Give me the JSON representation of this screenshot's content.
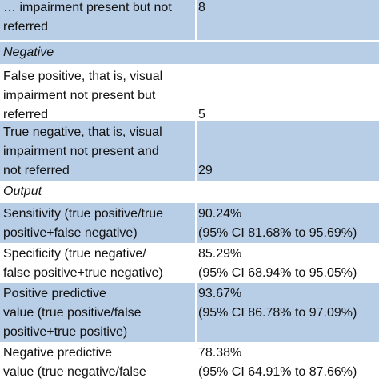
{
  "rows": [
    {
      "label": [
        "… impairment present but not",
        "referred"
      ],
      "value": [
        "",
        "8"
      ]
    },
    {
      "section": "Negative"
    },
    {
      "label": [
        "False positive, that is, visual",
        "impairment not present but",
        "referred"
      ],
      "value": [
        "",
        "",
        "5"
      ]
    },
    {
      "label": [
        "True negative, that is, visual",
        "impairment not present and",
        "not referred"
      ],
      "value": [
        "",
        "",
        "29"
      ]
    },
    {
      "section": "Output"
    },
    {
      "label": [
        "Sensitivity (true positive/true",
        "positive+false negative)"
      ],
      "value": [
        "90.24%",
        "(95% CI 81.68% to 95.69%)"
      ]
    },
    {
      "label": [
        "Specificity (true negative/",
        "false positive+true negative)"
      ],
      "value": [
        "85.29%",
        "(95% CI 68.94% to 95.05%)"
      ]
    },
    {
      "label": [
        "Positive predictive",
        "value (true positive/false",
        "positive+true positive)"
      ],
      "value": [
        "93.67%",
        "(95% CI 86.78% to 97.09%)",
        ""
      ]
    },
    {
      "label": [
        "Negative predictive",
        "value (true negative/false"
      ],
      "value": [
        "78.38%",
        "(95% CI 64.91% to 87.66%)"
      ]
    }
  ],
  "colors": {
    "shaded_row": "#b8cde6",
    "text": "#111111"
  }
}
